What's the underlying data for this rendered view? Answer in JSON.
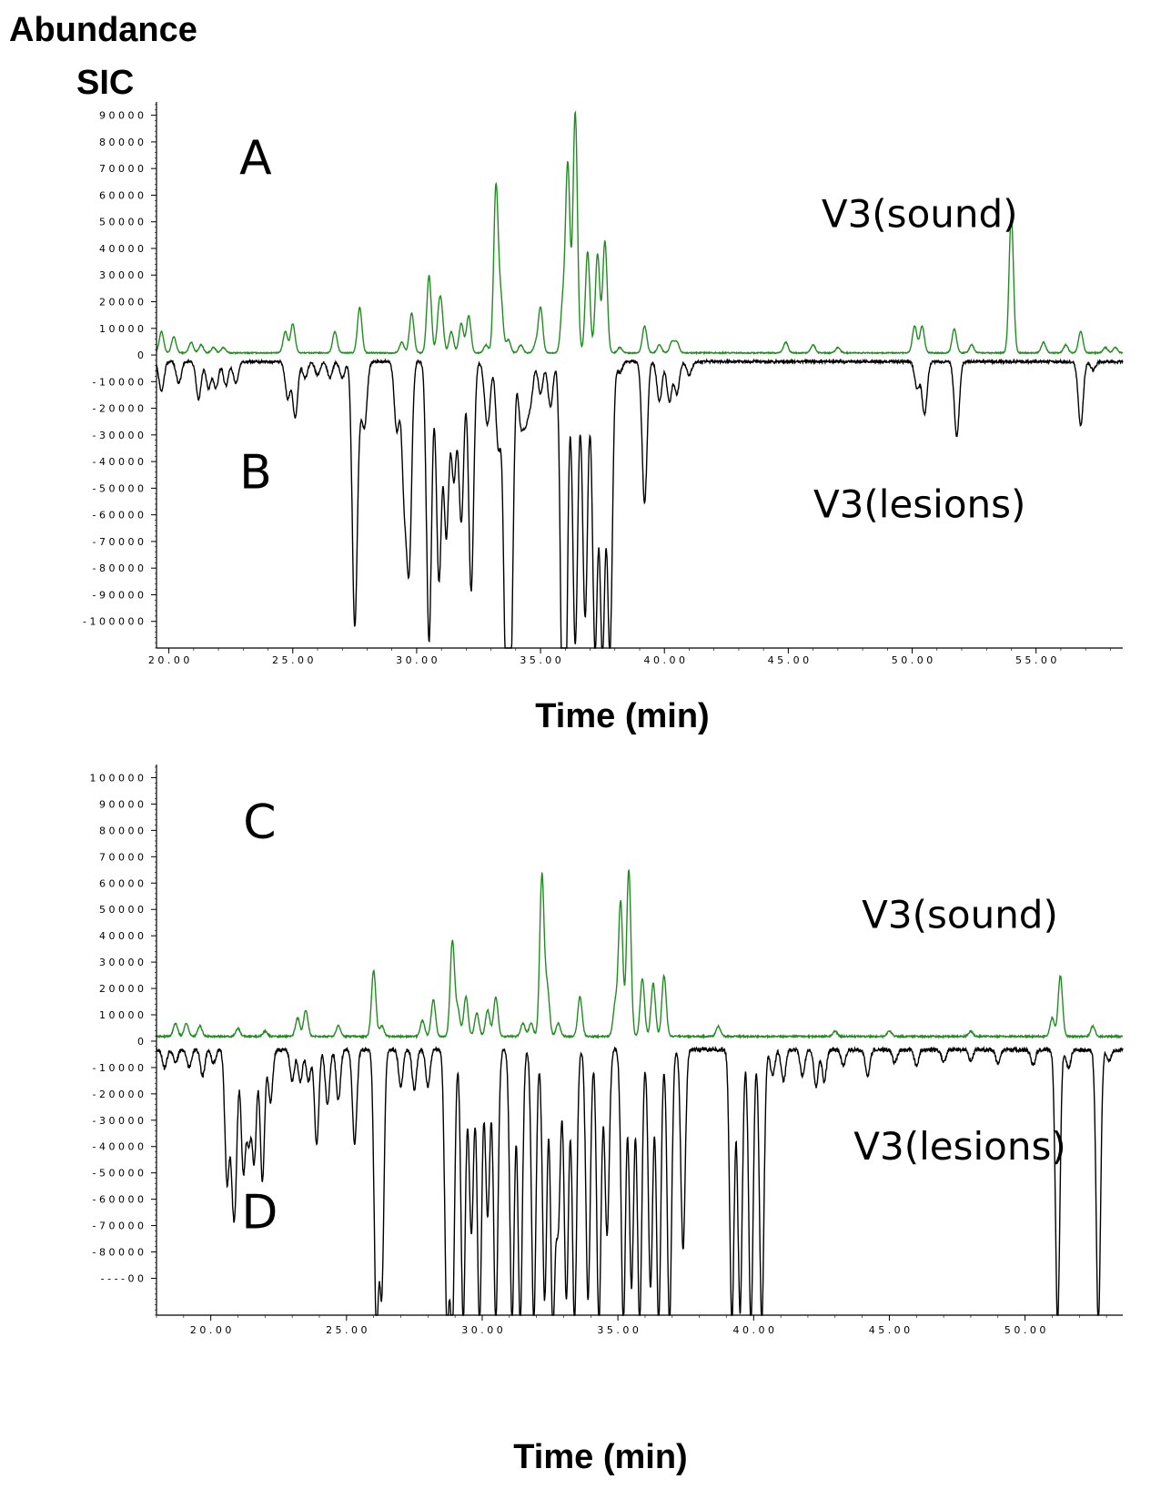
{
  "figure": {
    "ylabel_line1": "Abundance",
    "ylabel_line2": "SIC",
    "xtitle_top": "Time (min)",
    "xtitle_bottom": "Time (min)"
  },
  "colors": {
    "sound": "#228B22",
    "lesions": "#000000",
    "axis": "#000000"
  },
  "chart_data": [
    {
      "type": "line",
      "panel": "top",
      "xlabel": "Time (min)",
      "ylabel": "Abundance SIC",
      "xlim": [
        19.5,
        58.5
      ],
      "ylim": [
        -110000,
        95000
      ],
      "xticks": [
        20,
        25,
        30,
        35,
        40,
        45,
        50,
        55
      ],
      "xtick_labels": [
        "2 0 . 0 0",
        "2 5 . 0 0",
        "3 0 . 0 0",
        "3 5 . 0 0",
        "4 0 . 0 0",
        "4 5 . 0 0",
        "5 0 . 0 0",
        "5 5 . 0 0"
      ],
      "yticks": [
        90000,
        80000,
        70000,
        60000,
        50000,
        40000,
        30000,
        20000,
        10000,
        0,
        -10000,
        -20000,
        -30000,
        -40000,
        -50000,
        -60000,
        -70000,
        -80000,
        -90000,
        -100000
      ],
      "ytick_labels": [
        "9 0 0 0 0",
        "8 0 0 0 0",
        "7 0 0 0 0",
        "6 0 0 0 0",
        "5 0 0 0 0",
        "4 0 0 0 0",
        "3 0 0 0 0",
        "2 0 0 0 0",
        "1 0 0 0 0",
        "0",
        "- 1 0 0 0 0",
        "- 2 0 0 0 0",
        "- 3 0 0 0 0",
        "- 4 0 0 0 0",
        "- 5 0 0 0 0",
        "- 6 0 0 0 0",
        "- 7 0 0 0 0",
        "- 8 0 0 0 0",
        "- 9 0 0 0 0",
        "- 1 0 0 0 0 0"
      ],
      "annotations": [
        {
          "text": "A",
          "x": 23.5,
          "y": 68000,
          "size": "big"
        },
        {
          "text": "V3(sound)",
          "x": 50.3,
          "y": 48000,
          "size": "mid"
        },
        {
          "text": "B",
          "x": 23.5,
          "y": -50000,
          "size": "big"
        },
        {
          "text": "V3(lesions)",
          "x": 50.3,
          "y": -61000,
          "size": "mid"
        }
      ],
      "series": [
        {
          "name": "V3(sound)",
          "color": "#228B22",
          "direction": 1,
          "baseline": [
            600,
            400
          ],
          "width": 0.09,
          "peaks": [
            [
              19.7,
              8000
            ],
            [
              20.2,
              6000
            ],
            [
              20.9,
              4000
            ],
            [
              21.3,
              3000
            ],
            [
              21.8,
              2000
            ],
            [
              22.2,
              2000
            ],
            [
              24.7,
              8000
            ],
            [
              25.0,
              11000
            ],
            [
              26.7,
              8000
            ],
            [
              27.7,
              17000
            ],
            [
              29.4,
              4000
            ],
            [
              29.8,
              15000
            ],
            [
              30.5,
              29000
            ],
            [
              30.9,
              12000
            ],
            [
              31.0,
              13000
            ],
            [
              31.4,
              8000
            ],
            [
              31.8,
              11000
            ],
            [
              32.1,
              14000
            ],
            [
              32.8,
              3000
            ],
            [
              33.2,
              62000
            ],
            [
              33.4,
              19000
            ],
            [
              33.7,
              5000
            ],
            [
              34.2,
              3000
            ],
            [
              34.8,
              3000
            ],
            [
              35.0,
              17000
            ],
            [
              35.9,
              18000
            ],
            [
              36.1,
              70000
            ],
            [
              36.4,
              90000
            ],
            [
              36.9,
              38000
            ],
            [
              37.3,
              37000
            ],
            [
              37.6,
              42000
            ],
            [
              38.2,
              2000
            ],
            [
              39.2,
              10000
            ],
            [
              39.8,
              3000
            ],
            [
              40.3,
              4000
            ],
            [
              40.5,
              4000
            ],
            [
              44.9,
              4000
            ],
            [
              46.0,
              3000
            ],
            [
              47.0,
              2000
            ],
            [
              50.1,
              10000
            ],
            [
              50.4,
              10000
            ],
            [
              51.7,
              9000
            ],
            [
              52.4,
              3000
            ],
            [
              54.0,
              51000
            ],
            [
              55.3,
              4000
            ],
            [
              56.2,
              3000
            ],
            [
              56.8,
              8000
            ],
            [
              57.8,
              2000
            ],
            [
              58.2,
              2000
            ]
          ]
        },
        {
          "name": "V3(lesions)",
          "color": "#000000",
          "direction": -1,
          "baseline": [
            2000,
            1000
          ],
          "width": 0.1,
          "peaks": [
            [
              19.7,
              11000
            ],
            [
              20.4,
              8000
            ],
            [
              21.2,
              14000
            ],
            [
              21.6,
              10000
            ],
            [
              21.9,
              10000
            ],
            [
              22.3,
              9000
            ],
            [
              22.7,
              8000
            ],
            [
              24.8,
              14000
            ],
            [
              25.1,
              21000
            ],
            [
              25.5,
              6000
            ],
            [
              26.0,
              5000
            ],
            [
              26.5,
              6000
            ],
            [
              27.0,
              6000
            ],
            [
              27.5,
              98000
            ],
            [
              27.7,
              12000
            ],
            [
              27.9,
              23000
            ],
            [
              29.2,
              26000
            ],
            [
              29.5,
              47000
            ],
            [
              29.7,
              73000
            ],
            [
              30.5,
              105000
            ],
            [
              30.9,
              82000
            ],
            [
              31.2,
              65000
            ],
            [
              31.5,
              44000
            ],
            [
              31.8,
              60000
            ],
            [
              32.2,
              86000
            ],
            [
              32.8,
              12000
            ],
            [
              32.9,
              15000
            ],
            [
              33.3,
              32000
            ],
            [
              33.6,
              108000
            ],
            [
              33.8,
              108000
            ],
            [
              34.2,
              22000
            ],
            [
              34.4,
              20000
            ],
            [
              34.6,
              14000
            ],
            [
              35.0,
              12000
            ],
            [
              35.4,
              17000
            ],
            [
              35.9,
              108000
            ],
            [
              36.0,
              95000
            ],
            [
              36.4,
              106000
            ],
            [
              36.8,
              96000
            ],
            [
              37.2,
              108000
            ],
            [
              37.5,
              108000
            ],
            [
              37.8,
              108000
            ],
            [
              38.2,
              4000
            ],
            [
              39.2,
              53000
            ],
            [
              39.8,
              15000
            ],
            [
              40.2,
              15000
            ],
            [
              40.5,
              12000
            ],
            [
              41.0,
              5000
            ],
            [
              50.2,
              10000
            ],
            [
              50.5,
              20000
            ],
            [
              51.8,
              28000
            ],
            [
              56.8,
              24000
            ],
            [
              57.3,
              3000
            ]
          ]
        }
      ]
    },
    {
      "type": "line",
      "panel": "bottom",
      "xlabel": "Time (min)",
      "ylabel": "Abundance SIC",
      "xlim": [
        18.0,
        53.6
      ],
      "ylim": [
        -104000,
        105000
      ],
      "xticks": [
        20,
        25,
        30,
        35,
        40,
        45,
        50
      ],
      "xtick_labels": [
        "2 0 . 0 0",
        "2 5 . 0 0",
        "3 0 . 0 0",
        "3 5 . 0 0",
        "4 0 . 0 0",
        "4 5 . 0 0",
        "5 0 . 0 0"
      ],
      "yticks": [
        100000,
        90000,
        80000,
        70000,
        60000,
        50000,
        40000,
        30000,
        20000,
        10000,
        0,
        -10000,
        -20000,
        -30000,
        -40000,
        -50000,
        -60000,
        -70000,
        -80000,
        -90000
      ],
      "ytick_labels": [
        "1 0 0 0 0 0",
        "9 0 0 0 0",
        "8 0 0 0 0",
        "7 0 0 0 0",
        "6 0 0 0 0",
        "5 0 0 0 0",
        "4 0 0 0 0",
        "3 0 0 0 0",
        "2 0 0 0 0",
        "1 0 0 0 0",
        "0",
        "- 1 0 0 0 0",
        "- 2 0 0 0 0",
        "- 3 0 0 0 0",
        "- 4 0 0 0 0",
        "- 5 0 0 0 0",
        "- 6 0 0 0 0",
        "- 7 0 0 0 0",
        "- 8 0 0 0 0",
        "- - - - 0 0"
      ],
      "annotations": [
        {
          "text": "C",
          "x": 21.8,
          "y": 77000,
          "size": "big"
        },
        {
          "text": "V3(sound)",
          "x": 47.6,
          "y": 43000,
          "size": "mid"
        },
        {
          "text": "V3(lesions)",
          "x": 47.6,
          "y": -45000,
          "size": "mid"
        },
        {
          "text": "D",
          "x": 21.8,
          "y": -71000,
          "size": "big"
        }
      ],
      "series": [
        {
          "name": "V3(sound)",
          "color": "#228B22",
          "direction": 1,
          "baseline": [
            1500,
            600
          ],
          "width": 0.08,
          "peaks": [
            [
              18.7,
              5000
            ],
            [
              19.1,
              5000
            ],
            [
              19.6,
              4000
            ],
            [
              21.0,
              3000
            ],
            [
              22.0,
              2000
            ],
            [
              23.2,
              7000
            ],
            [
              23.5,
              10000
            ],
            [
              24.7,
              4000
            ],
            [
              26.0,
              25000
            ],
            [
              26.3,
              4000
            ],
            [
              27.8,
              6000
            ],
            [
              28.2,
              14000
            ],
            [
              28.9,
              36000
            ],
            [
              29.1,
              10000
            ],
            [
              29.4,
              15000
            ],
            [
              29.8,
              9000
            ],
            [
              30.2,
              10000
            ],
            [
              30.5,
              15000
            ],
            [
              31.5,
              5000
            ],
            [
              31.8,
              5000
            ],
            [
              32.2,
              61000
            ],
            [
              32.4,
              18000
            ],
            [
              32.8,
              5000
            ],
            [
              33.6,
              15000
            ],
            [
              34.9,
              12000
            ],
            [
              35.1,
              51000
            ],
            [
              35.4,
              63000
            ],
            [
              35.9,
              22000
            ],
            [
              36.3,
              20000
            ],
            [
              36.7,
              23000
            ],
            [
              38.7,
              4000
            ],
            [
              43.0,
              2000
            ],
            [
              45.0,
              2000
            ],
            [
              48.0,
              2000
            ],
            [
              51.0,
              7000
            ],
            [
              51.3,
              23000
            ],
            [
              52.5,
              4000
            ]
          ]
        },
        {
          "name": "V3(lesions)",
          "color": "#000000",
          "direction": -1,
          "baseline": [
            2500,
            1500
          ],
          "width": 0.08,
          "peaks": [
            [
              18.3,
              7000
            ],
            [
              18.7,
              5000
            ],
            [
              19.2,
              7000
            ],
            [
              19.7,
              10000
            ],
            [
              20.1,
              5000
            ],
            [
              20.6,
              50000
            ],
            [
              20.8,
              35000
            ],
            [
              20.9,
              44000
            ],
            [
              21.2,
              46000
            ],
            [
              21.4,
              33000
            ],
            [
              21.6,
              42000
            ],
            [
              21.9,
              50000
            ],
            [
              22.2,
              20000
            ],
            [
              23.0,
              12000
            ],
            [
              23.3,
              12000
            ],
            [
              23.6,
              12000
            ],
            [
              23.9,
              36000
            ],
            [
              24.3,
              21000
            ],
            [
              24.7,
              19000
            ],
            [
              25.3,
              36000
            ],
            [
              26.1,
              104000
            ],
            [
              26.3,
              90000
            ],
            [
              27.0,
              14000
            ],
            [
              27.5,
              15000
            ],
            [
              28.0,
              14000
            ],
            [
              28.7,
              102000
            ],
            [
              28.9,
              104000
            ],
            [
              29.3,
              104000
            ],
            [
              29.6,
              70000
            ],
            [
              29.9,
              104000
            ],
            [
              30.2,
              63000
            ],
            [
              30.5,
              104000
            ],
            [
              31.1,
              104000
            ],
            [
              31.4,
              104000
            ],
            [
              31.9,
              104000
            ],
            [
              32.3,
              95000
            ],
            [
              32.6,
              104000
            ],
            [
              32.8,
              65000
            ],
            [
              33.1,
              95000
            ],
            [
              33.4,
              104000
            ],
            [
              33.9,
              95000
            ],
            [
              34.3,
              104000
            ],
            [
              34.6,
              70000
            ],
            [
              35.2,
              104000
            ],
            [
              35.5,
              90000
            ],
            [
              35.8,
              104000
            ],
            [
              36.2,
              90000
            ],
            [
              36.5,
              104000
            ],
            [
              36.9,
              104000
            ],
            [
              37.4,
              76000
            ],
            [
              39.2,
              104000
            ],
            [
              39.5,
              100000
            ],
            [
              39.9,
              104000
            ],
            [
              40.3,
              104000
            ],
            [
              40.7,
              10000
            ],
            [
              41.1,
              12000
            ],
            [
              41.8,
              10000
            ],
            [
              42.3,
              14000
            ],
            [
              42.6,
              12000
            ],
            [
              43.3,
              6000
            ],
            [
              44.2,
              10000
            ],
            [
              45.2,
              5000
            ],
            [
              46.0,
              6000
            ],
            [
              47.0,
              5000
            ],
            [
              48.0,
              4000
            ],
            [
              49.0,
              5000
            ],
            [
              50.3,
              6000
            ],
            [
              51.2,
              104000
            ],
            [
              51.6,
              7000
            ],
            [
              52.7,
              104000
            ],
            [
              53.1,
              4000
            ]
          ]
        }
      ]
    }
  ]
}
